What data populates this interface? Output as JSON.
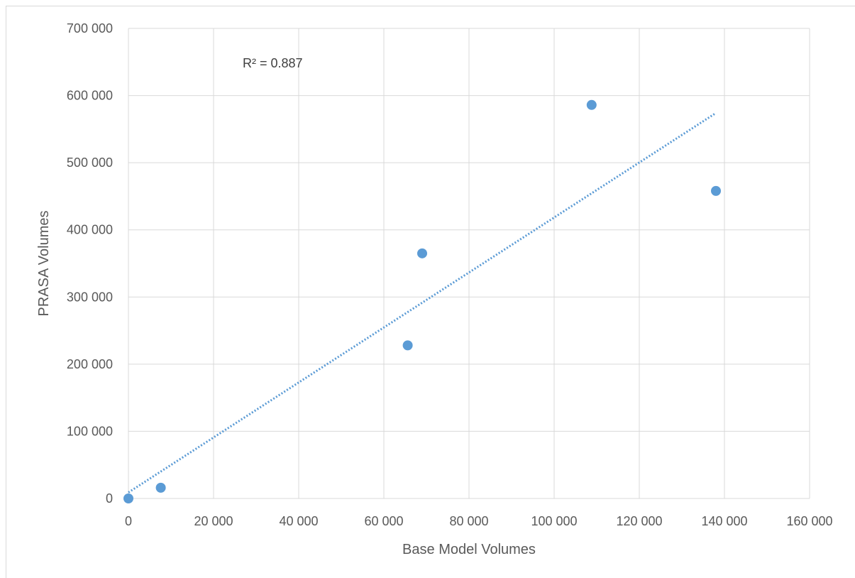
{
  "chart_data": {
    "type": "scatter",
    "title": "",
    "xlabel": "Base Model Volumes",
    "ylabel": "PRASA Volumes",
    "xlim": [
      0,
      160000
    ],
    "ylim": [
      0,
      700000
    ],
    "x_ticks": [
      0,
      20000,
      40000,
      60000,
      80000,
      100000,
      120000,
      140000,
      160000
    ],
    "x_tick_labels": [
      "0",
      "20 000",
      "40 000",
      "60 000",
      "80 000",
      "100 000",
      "120 000",
      "140 000",
      "160 000"
    ],
    "y_ticks": [
      0,
      100000,
      200000,
      300000,
      400000,
      500000,
      600000,
      700000
    ],
    "y_tick_labels": [
      "0",
      "100 000",
      "200 000",
      "300 000",
      "400 000",
      "500 000",
      "600 000",
      "700 000"
    ],
    "grid": true,
    "series": [
      {
        "color": "#5b9bd5",
        "points": [
          {
            "x": 0,
            "y": 0
          },
          {
            "x": 7600,
            "y": 16000
          },
          {
            "x": 65600,
            "y": 228000
          },
          {
            "x": 69000,
            "y": 365000
          },
          {
            "x": 108800,
            "y": 586000
          },
          {
            "x": 138000,
            "y": 458000
          }
        ]
      }
    ],
    "trendline": {
      "type": "linear",
      "style": "dotted",
      "color": "#5b9bd5",
      "x_range": [
        0,
        138000
      ],
      "y_at_start": 9000,
      "y_at_end": 574000
    },
    "annotations": [
      {
        "text": "R² = 0.887"
      }
    ]
  }
}
